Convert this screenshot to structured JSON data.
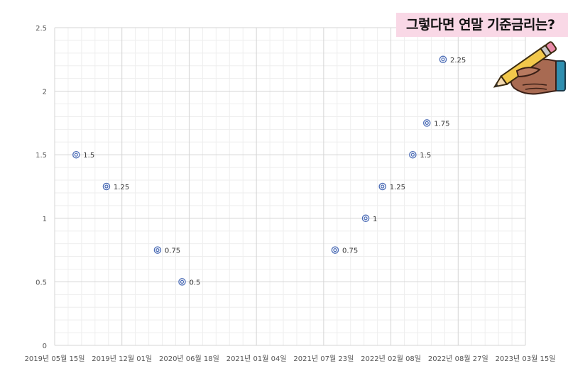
{
  "banner": {
    "title": "그렇다면 연말 기준금리는?"
  },
  "chart_data": {
    "type": "scatter",
    "title": "",
    "xlabel": "",
    "ylabel": "",
    "ylim": [
      0,
      2.5
    ],
    "yticks": [
      "0",
      "0.5",
      "1",
      "1.5",
      "2",
      "2.5"
    ],
    "xlim": [
      "2019-05-15",
      "2023-03-15"
    ],
    "xticks": [
      "2019년 05월 15일",
      "2019년 12월 01일",
      "2020년 06월 18일",
      "2021년 01월 04일",
      "2021년 07월 23일",
      "2022년 02월 08일",
      "2022년 08월 27일",
      "2023년 03월 15일"
    ],
    "grid": true,
    "marker_color": "#4a6bb5",
    "points": [
      {
        "x": "2019-07-18",
        "y": 1.5,
        "label": "1.5"
      },
      {
        "x": "2019-10-16",
        "y": 1.25,
        "label": "1.25"
      },
      {
        "x": "2020-03-16",
        "y": 0.75,
        "label": "0.75"
      },
      {
        "x": "2020-05-28",
        "y": 0.5,
        "label": "0.5"
      },
      {
        "x": "2021-08-26",
        "y": 0.75,
        "label": "0.75"
      },
      {
        "x": "2021-11-25",
        "y": 1,
        "label": "1"
      },
      {
        "x": "2022-01-14",
        "y": 1.25,
        "label": "1.25"
      },
      {
        "x": "2022-04-14",
        "y": 1.5,
        "label": "1.5"
      },
      {
        "x": "2022-05-26",
        "y": 1.75,
        "label": "1.75"
      },
      {
        "x": "2022-07-13",
        "y": 2.25,
        "label": "2.25"
      }
    ]
  },
  "decoration": {
    "icon": "hand-holding-pencil-icon"
  }
}
